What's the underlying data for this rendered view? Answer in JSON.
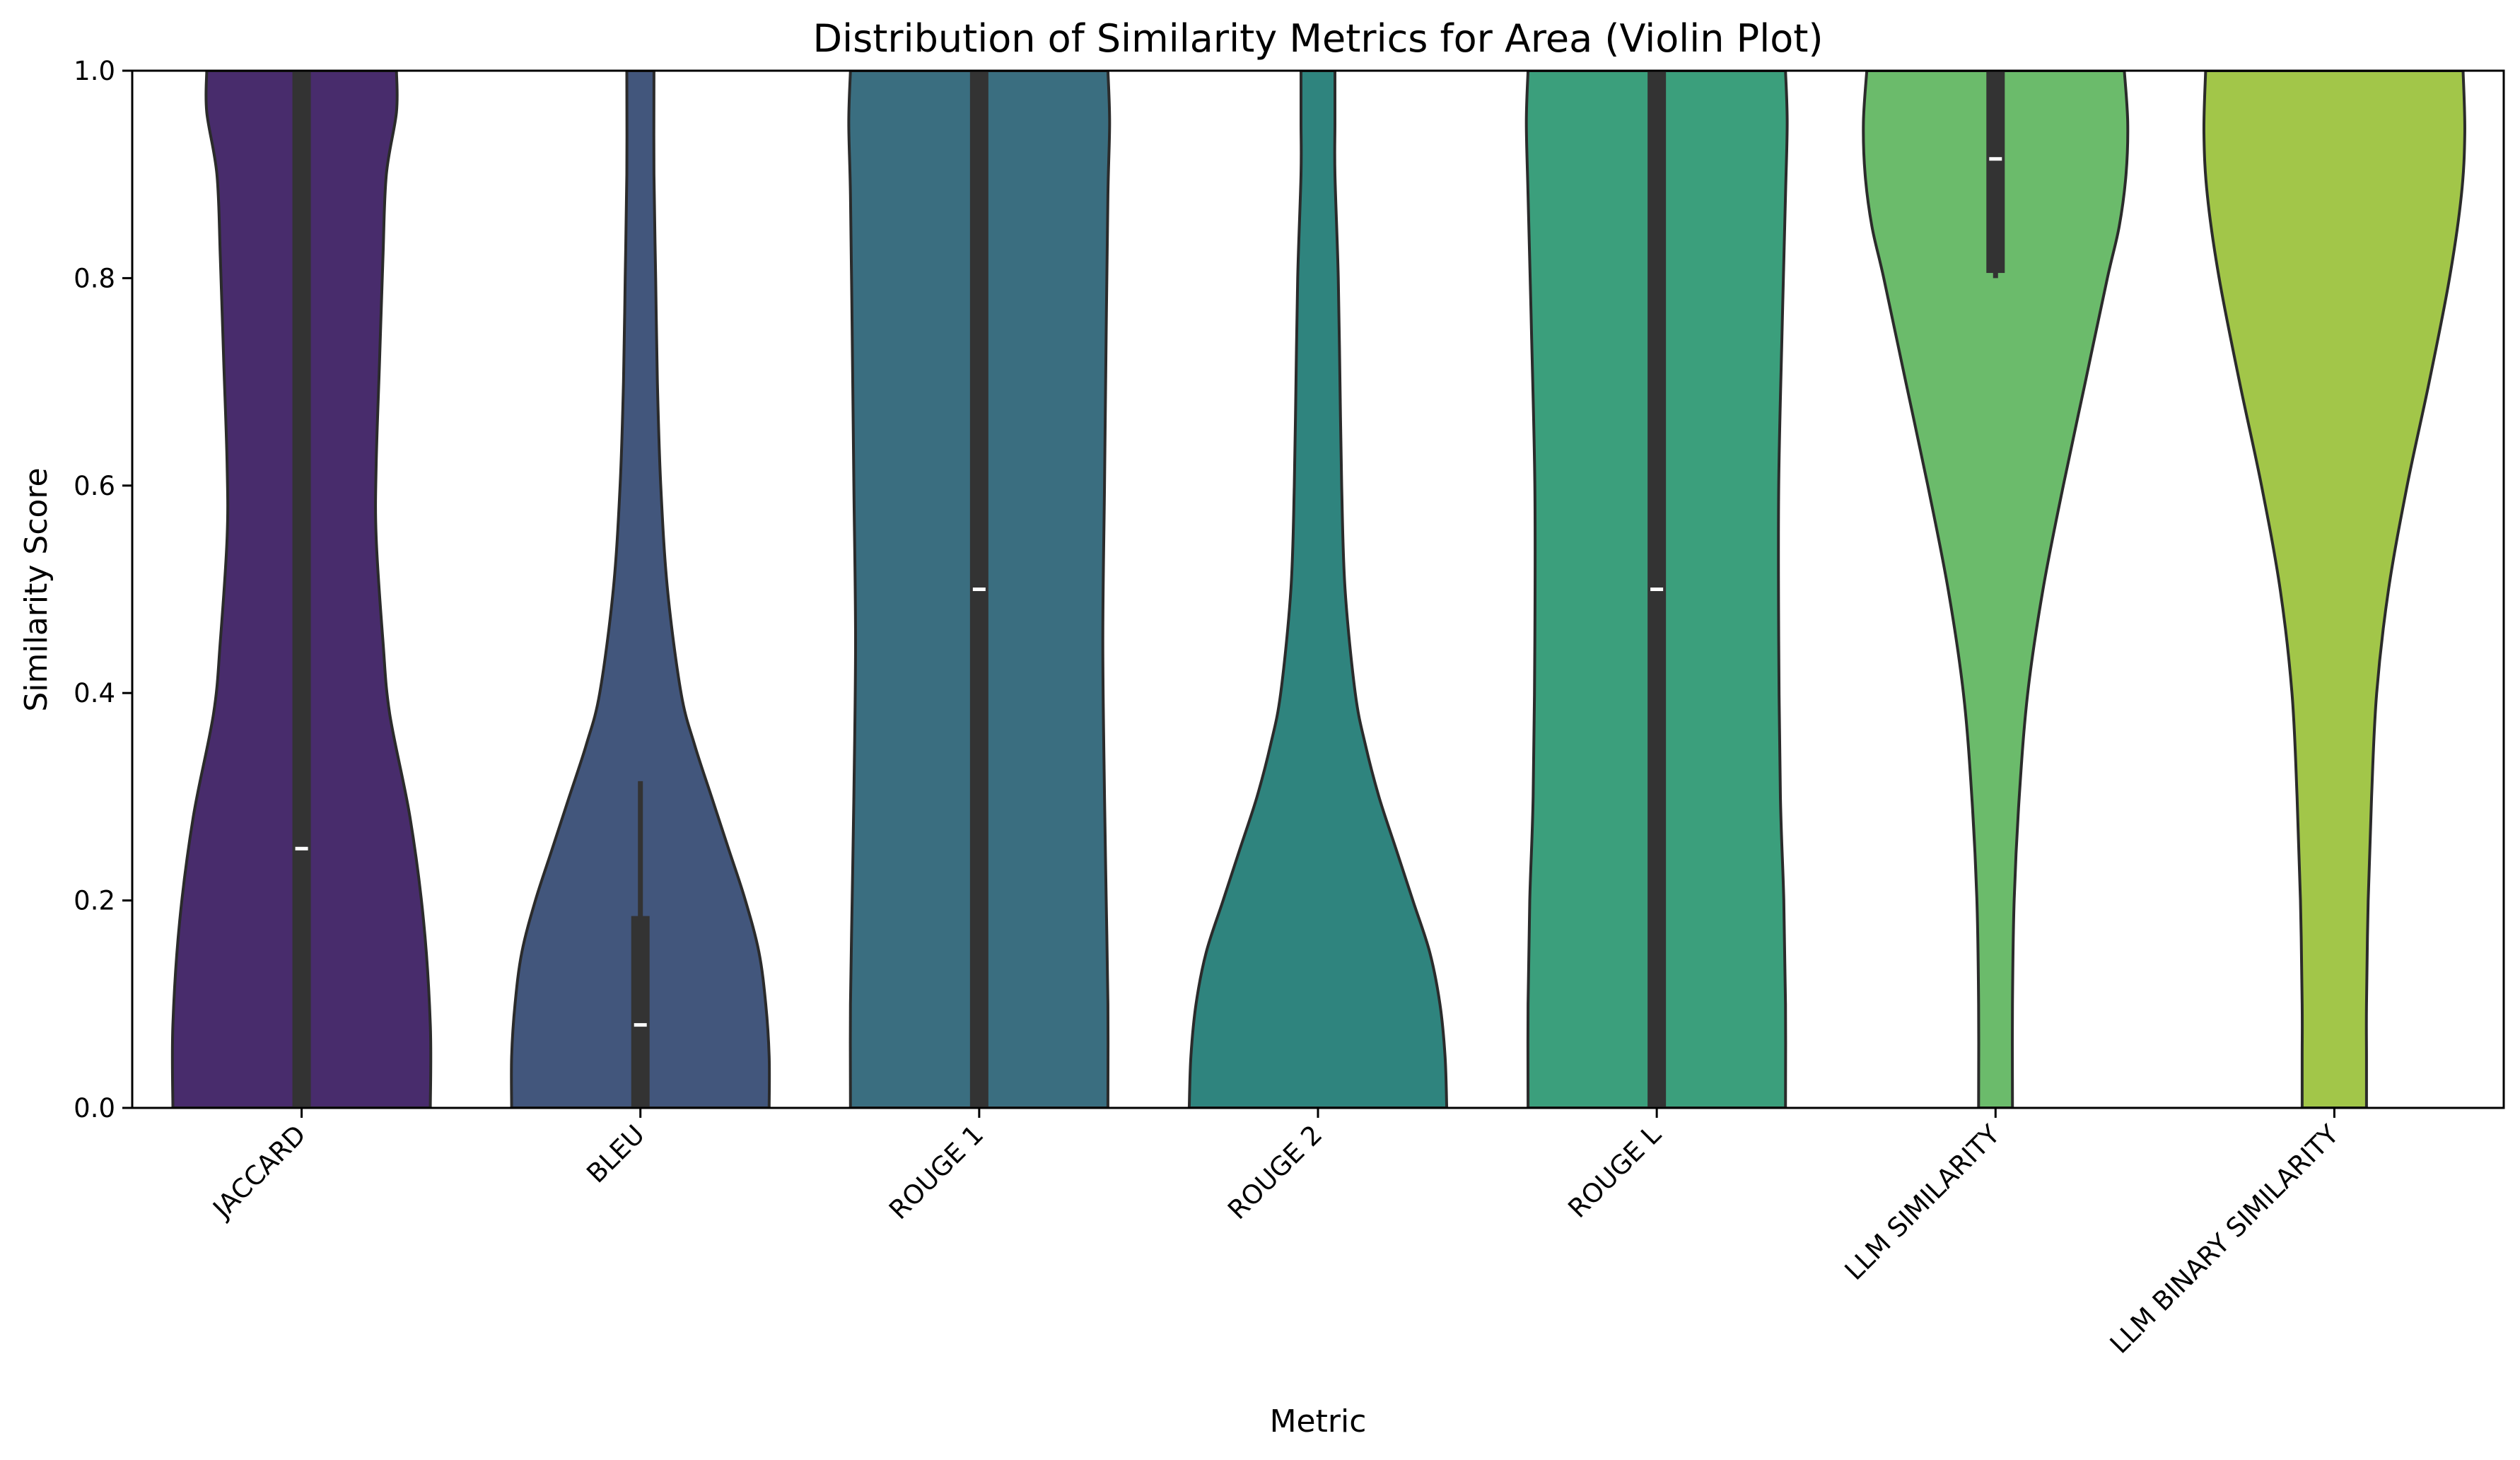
{
  "chart_data": {
    "type": "violin",
    "title": "Distribution of Similarity Metrics for Area (Violin Plot)",
    "xlabel": "Metric",
    "ylabel": "Similarity Score",
    "ylim": [
      0,
      1
    ],
    "yticks": [
      "0.0",
      "0.2",
      "0.4",
      "0.6",
      "0.8",
      "1.0"
    ],
    "yticks_values": [
      0,
      0.2,
      0.4,
      0.6,
      0.8,
      1.0
    ],
    "grid": false,
    "legend": "none",
    "categories": [
      "JACCARD",
      "BLEU",
      "ROUGE 1",
      "ROUGE 2",
      "ROUGE L",
      "LLM SIMILARITY",
      "LLM BINARY SIMILARITY"
    ],
    "colors": [
      "#482c6c",
      "#42567c",
      "#3a6e80",
      "#2f847e",
      "#3b9f7c",
      "#6bbb6b",
      "#a2c649"
    ],
    "violins": [
      {
        "category": "JACCARD",
        "profile": [
          [
            0.0,
            0.38
          ],
          [
            0.08,
            0.38
          ],
          [
            0.18,
            0.36
          ],
          [
            0.28,
            0.32
          ],
          [
            0.38,
            0.26
          ],
          [
            0.45,
            0.24
          ],
          [
            0.55,
            0.22
          ],
          [
            0.62,
            0.22
          ],
          [
            0.72,
            0.23
          ],
          [
            0.82,
            0.24
          ],
          [
            0.9,
            0.25
          ],
          [
            0.96,
            0.28
          ],
          [
            1.0,
            0.28
          ]
        ],
        "median": 0.25,
        "q1": 0.0,
        "q3": 1.0,
        "whisker_low": 0.0,
        "whisker_high": 1.0
      },
      {
        "category": "BLEU",
        "profile": [
          [
            0.0,
            0.38
          ],
          [
            0.05,
            0.38
          ],
          [
            0.1,
            0.37
          ],
          [
            0.15,
            0.35
          ],
          [
            0.2,
            0.31
          ],
          [
            0.25,
            0.26
          ],
          [
            0.3,
            0.21
          ],
          [
            0.35,
            0.16
          ],
          [
            0.4,
            0.12
          ],
          [
            0.5,
            0.08
          ],
          [
            0.6,
            0.06
          ],
          [
            0.7,
            0.05
          ],
          [
            0.8,
            0.045
          ],
          [
            0.9,
            0.04
          ],
          [
            1.0,
            0.04
          ]
        ],
        "median": 0.08,
        "q1": 0.0,
        "q3": 0.185,
        "whisker_low": 0.0,
        "whisker_high": 0.315
      },
      {
        "category": "ROUGE 1",
        "profile": [
          [
            0.0,
            0.38
          ],
          [
            0.1,
            0.38
          ],
          [
            0.2,
            0.375
          ],
          [
            0.3,
            0.37
          ],
          [
            0.45,
            0.365
          ],
          [
            0.6,
            0.37
          ],
          [
            0.75,
            0.375
          ],
          [
            0.88,
            0.38
          ],
          [
            0.95,
            0.385
          ],
          [
            1.0,
            0.38
          ]
        ],
        "median": 0.5,
        "q1": 0.0,
        "q3": 1.0,
        "whisker_low": 0.0,
        "whisker_high": 1.0
      },
      {
        "category": "ROUGE 2",
        "profile": [
          [
            0.0,
            0.38
          ],
          [
            0.05,
            0.375
          ],
          [
            0.1,
            0.36
          ],
          [
            0.15,
            0.33
          ],
          [
            0.2,
            0.28
          ],
          [
            0.25,
            0.23
          ],
          [
            0.3,
            0.18
          ],
          [
            0.35,
            0.14
          ],
          [
            0.4,
            0.11
          ],
          [
            0.5,
            0.08
          ],
          [
            0.6,
            0.07
          ],
          [
            0.7,
            0.065
          ],
          [
            0.8,
            0.06
          ],
          [
            0.9,
            0.05
          ],
          [
            0.95,
            0.05
          ],
          [
            1.0,
            0.05
          ]
        ],
        "median": null,
        "q1": null,
        "q3": null,
        "whisker_low": null,
        "whisker_high": null
      },
      {
        "category": "ROUGE L",
        "profile": [
          [
            0.0,
            0.38
          ],
          [
            0.1,
            0.38
          ],
          [
            0.2,
            0.375
          ],
          [
            0.3,
            0.365
          ],
          [
            0.45,
            0.36
          ],
          [
            0.6,
            0.36
          ],
          [
            0.75,
            0.37
          ],
          [
            0.88,
            0.38
          ],
          [
            0.95,
            0.385
          ],
          [
            1.0,
            0.38
          ]
        ],
        "median": 0.5,
        "q1": 0.0,
        "q3": 1.0,
        "whisker_low": 0.0,
        "whisker_high": 1.0
      },
      {
        "category": "LLM SIMILARITY",
        "profile": [
          [
            0.0,
            0.05
          ],
          [
            0.1,
            0.05
          ],
          [
            0.2,
            0.055
          ],
          [
            0.3,
            0.07
          ],
          [
            0.4,
            0.095
          ],
          [
            0.5,
            0.14
          ],
          [
            0.6,
            0.2
          ],
          [
            0.7,
            0.265
          ],
          [
            0.8,
            0.33
          ],
          [
            0.85,
            0.365
          ],
          [
            0.9,
            0.385
          ],
          [
            0.95,
            0.39
          ],
          [
            1.0,
            0.38
          ]
        ],
        "median": 0.915,
        "q1": 0.805,
        "q3": 1.0,
        "whisker_low": 0.8,
        "whisker_high": 1.0
      },
      {
        "category": "LLM BINARY SIMILARITY",
        "profile": [
          [
            0.0,
            0.095
          ],
          [
            0.05,
            0.095
          ],
          [
            0.1,
            0.095
          ],
          [
            0.2,
            0.1
          ],
          [
            0.3,
            0.11
          ],
          [
            0.4,
            0.125
          ],
          [
            0.5,
            0.16
          ],
          [
            0.6,
            0.215
          ],
          [
            0.7,
            0.28
          ],
          [
            0.8,
            0.34
          ],
          [
            0.88,
            0.375
          ],
          [
            0.94,
            0.385
          ],
          [
            1.0,
            0.38
          ]
        ],
        "median": null,
        "q1": null,
        "q3": null,
        "whisker_low": null,
        "whisker_high": null
      }
    ]
  }
}
